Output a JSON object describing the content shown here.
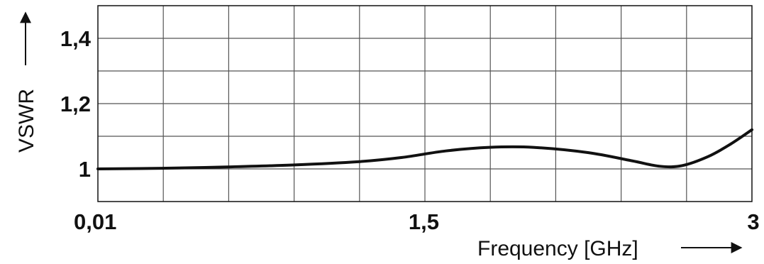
{
  "chart_data": {
    "type": "line",
    "xlabel": "Frequency [GHz]",
    "ylabel": "VSWR",
    "xlim": [
      0.01,
      3
    ],
    "ylim": [
      0.9,
      1.5
    ],
    "grid": true,
    "x_ticks": [
      {
        "value": 0.01,
        "label": "0,01"
      },
      {
        "value": 1.5,
        "label": "1,5"
      },
      {
        "value": 3,
        "label": "3"
      }
    ],
    "y_ticks": [
      {
        "value": 1.0,
        "label": "1"
      },
      {
        "value": 1.2,
        "label": "1,2"
      },
      {
        "value": 1.4,
        "label": "1,4"
      }
    ],
    "series": [
      {
        "x": [
          0.01,
          0.3,
          0.6,
          0.9,
          1.2,
          1.4,
          1.6,
          1.8,
          2.0,
          2.25,
          2.45,
          2.58,
          2.68,
          2.8,
          2.9,
          3.0
        ],
        "y": [
          1.0,
          1.002,
          1.006,
          1.012,
          1.022,
          1.035,
          1.055,
          1.066,
          1.066,
          1.05,
          1.025,
          1.008,
          1.01,
          1.038,
          1.075,
          1.12
        ]
      }
    ]
  }
}
